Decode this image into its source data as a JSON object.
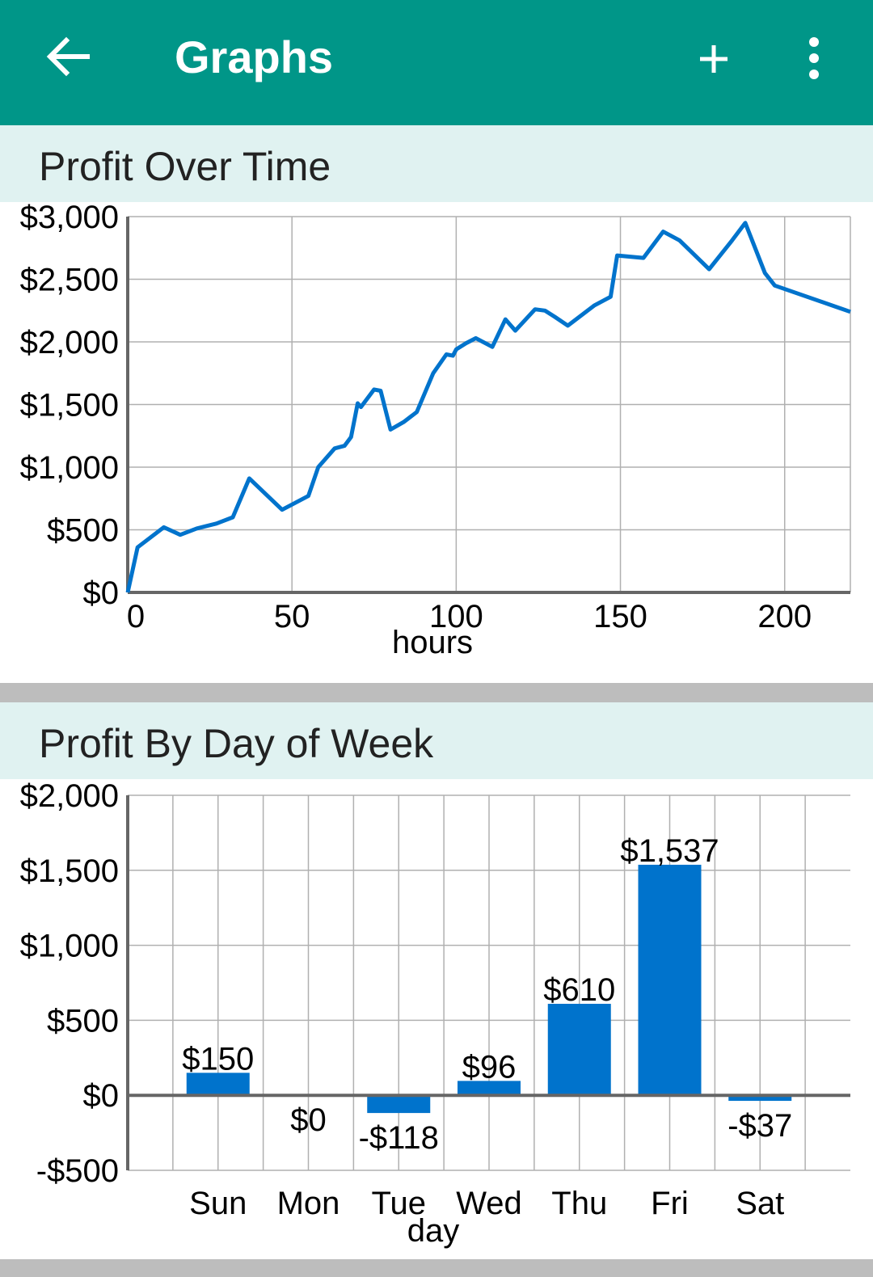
{
  "appbar": {
    "title": "Graphs",
    "icons": [
      "back-arrow-icon",
      "add-icon",
      "more-vert-icon"
    ],
    "color": "#009688"
  },
  "sections": {
    "profit_over_time": {
      "title": "Profit Over Time"
    },
    "profit_by_day": {
      "title": "Profit By Day of Week"
    }
  },
  "colors": {
    "series": "#0073cc",
    "section_header_bg": "#e0f2f1",
    "divider": "#bdbdbd",
    "grid": "#b0b0b0",
    "axis": "#666666"
  },
  "chart_data": [
    {
      "type": "line",
      "xlabel": "hours",
      "ylabel": "",
      "xlim": [
        0,
        220
      ],
      "ylim": [
        0,
        3000
      ],
      "xticks": [
        0,
        50,
        100,
        150,
        200
      ],
      "yticks": [
        0,
        500,
        1000,
        1500,
        2000,
        2500,
        3000
      ],
      "ytick_labels": [
        "$0",
        "$500",
        "$1,000",
        "$1,500",
        "$2,000",
        "$2,500",
        "$3,000"
      ],
      "grid": true,
      "series": [
        {
          "x": [
            0,
            3,
            11,
            16,
            21,
            27,
            32,
            37,
            47,
            55,
            58,
            63,
            66,
            68,
            70,
            71,
            75,
            77,
            80,
            84,
            88,
            93,
            97,
            99,
            100,
            103,
            106,
            111,
            115,
            118,
            124,
            127,
            130,
            134,
            142,
            147,
            149,
            157,
            163,
            168,
            177,
            184,
            188,
            194,
            197,
            220
          ],
          "y": [
            0,
            360,
            520,
            460,
            510,
            550,
            600,
            910,
            660,
            770,
            1000,
            1150,
            1170,
            1240,
            1510,
            1480,
            1620,
            1610,
            1300,
            1360,
            1440,
            1750,
            1900,
            1890,
            1940,
            1990,
            2030,
            1960,
            2180,
            2090,
            2260,
            2250,
            2200,
            2130,
            2290,
            2360,
            2690,
            2670,
            2880,
            2810,
            2580,
            2810,
            2950,
            2550,
            2450,
            2240
          ]
        }
      ]
    },
    {
      "type": "bar",
      "xlabel": "day",
      "ylabel": "",
      "categories": [
        "Sun",
        "Mon",
        "Tue",
        "Wed",
        "Thu",
        "Fri",
        "Sat"
      ],
      "values": [
        150,
        0,
        -118,
        96,
        610,
        1537,
        -37
      ],
      "value_labels": [
        "$150",
        "$0",
        "-$118",
        "$96",
        "$610",
        "$1,537",
        "-$37"
      ],
      "ylim": [
        -500,
        2000
      ],
      "yticks": [
        -500,
        0,
        500,
        1000,
        1500,
        2000
      ],
      "ytick_labels": [
        "-$500",
        "$0",
        "$500",
        "$1,000",
        "$1,500",
        "$2,000"
      ],
      "grid": true
    }
  ]
}
